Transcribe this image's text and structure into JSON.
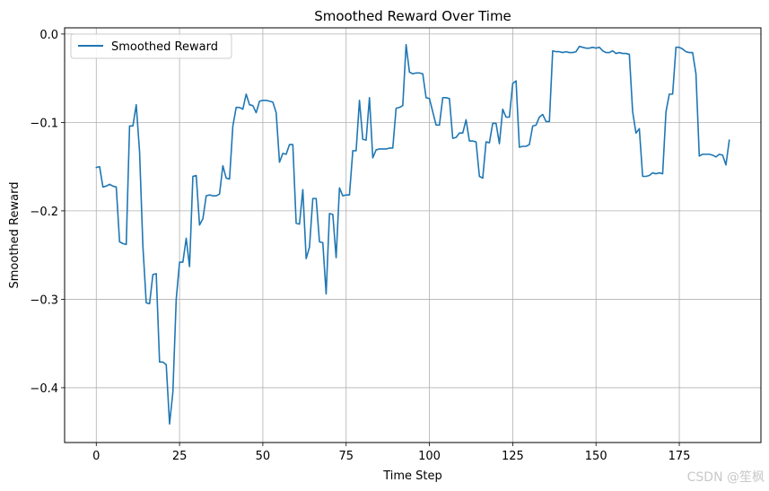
{
  "chart_data": {
    "type": "line",
    "title": "Smoothed Reward Over Time",
    "xlabel": "Time Step",
    "ylabel": "Smoothed Reward",
    "xlim": [
      -9.5,
      199.5
    ],
    "ylim": [
      -0.462,
      0.007
    ],
    "xticks": [
      0,
      25,
      50,
      75,
      100,
      125,
      150,
      175
    ],
    "yticks": [
      0.0,
      -0.1,
      -0.2,
      -0.3,
      -0.4
    ],
    "ytick_labels": [
      "0.0",
      "−0.1",
      "−0.2",
      "−0.3",
      "−0.4"
    ],
    "grid": true,
    "legend_position": "top-left",
    "series": [
      {
        "name": "Smoothed Reward",
        "color": "#1f77b4",
        "x": [
          0,
          1,
          2,
          3,
          4,
          5,
          6,
          7,
          8,
          9,
          10,
          11,
          12,
          13,
          14,
          15,
          16,
          17,
          18,
          19,
          20,
          21,
          22,
          23,
          24,
          25,
          26,
          27,
          28,
          29,
          30,
          31,
          32,
          33,
          34,
          35,
          36,
          37,
          38,
          39,
          40,
          41,
          42,
          43,
          44,
          45,
          46,
          47,
          48,
          49,
          50,
          51,
          52,
          53,
          54,
          55,
          56,
          57,
          58,
          59,
          60,
          61,
          62,
          63,
          64,
          65,
          66,
          67,
          68,
          69,
          70,
          71,
          72,
          73,
          74,
          75,
          76,
          77,
          78,
          79,
          80,
          81,
          82,
          83,
          84,
          85,
          86,
          87,
          88,
          89,
          90,
          91,
          92,
          93,
          94,
          95,
          96,
          97,
          98,
          99,
          100,
          101,
          102,
          103,
          104,
          105,
          106,
          107,
          108,
          109,
          110,
          111,
          112,
          113,
          114,
          115,
          116,
          117,
          118,
          119,
          120,
          121,
          122,
          123,
          124,
          125,
          126,
          127,
          128,
          129,
          130,
          131,
          132,
          133,
          134,
          135,
          136,
          137,
          138,
          139,
          140,
          141,
          142,
          143,
          144,
          145,
          146,
          147,
          148,
          149,
          150,
          151,
          152,
          153,
          154,
          155,
          156,
          157,
          158,
          159,
          160,
          161,
          162,
          163,
          164,
          165,
          166,
          167,
          168,
          169,
          170,
          171,
          172,
          173,
          174,
          175,
          176,
          177,
          178,
          179,
          180,
          181,
          182,
          183,
          184,
          185,
          186,
          187,
          188,
          189,
          190
        ],
        "y": [
          -0.151,
          -0.15,
          -0.173,
          -0.172,
          -0.17,
          -0.172,
          -0.173,
          -0.235,
          -0.237,
          -0.238,
          -0.104,
          -0.104,
          -0.08,
          -0.133,
          -0.24,
          -0.304,
          -0.305,
          -0.272,
          -0.271,
          -0.371,
          -0.371,
          -0.374,
          -0.441,
          -0.405,
          -0.3,
          -0.258,
          -0.258,
          -0.231,
          -0.263,
          -0.161,
          -0.16,
          -0.216,
          -0.209,
          -0.183,
          -0.182,
          -0.183,
          -0.183,
          -0.181,
          -0.149,
          -0.163,
          -0.164,
          -0.104,
          -0.083,
          -0.083,
          -0.085,
          -0.068,
          -0.08,
          -0.081,
          -0.089,
          -0.076,
          -0.075,
          -0.075,
          -0.076,
          -0.077,
          -0.089,
          -0.145,
          -0.135,
          -0.136,
          -0.125,
          -0.125,
          -0.214,
          -0.215,
          -0.176,
          -0.254,
          -0.241,
          -0.186,
          -0.186,
          -0.235,
          -0.236,
          -0.294,
          -0.203,
          -0.204,
          -0.253,
          -0.174,
          -0.183,
          -0.182,
          -0.182,
          -0.132,
          -0.132,
          -0.075,
          -0.119,
          -0.12,
          -0.072,
          -0.14,
          -0.131,
          -0.13,
          -0.13,
          -0.13,
          -0.129,
          -0.129,
          -0.084,
          -0.083,
          -0.081,
          -0.012,
          -0.043,
          -0.045,
          -0.044,
          -0.044,
          -0.045,
          -0.072,
          -0.073,
          -0.088,
          -0.103,
          -0.103,
          -0.072,
          -0.072,
          -0.073,
          -0.118,
          -0.117,
          -0.112,
          -0.112,
          -0.097,
          -0.121,
          -0.121,
          -0.122,
          -0.161,
          -0.163,
          -0.122,
          -0.123,
          -0.101,
          -0.101,
          -0.124,
          -0.085,
          -0.094,
          -0.094,
          -0.056,
          -0.053,
          -0.128,
          -0.127,
          -0.127,
          -0.125,
          -0.104,
          -0.103,
          -0.094,
          -0.091,
          -0.099,
          -0.099,
          -0.019,
          -0.02,
          -0.02,
          -0.021,
          -0.02,
          -0.021,
          -0.021,
          -0.02,
          -0.014,
          -0.015,
          -0.016,
          -0.016,
          -0.015,
          -0.016,
          -0.015,
          -0.019,
          -0.021,
          -0.021,
          -0.019,
          -0.022,
          -0.021,
          -0.022,
          -0.022,
          -0.023,
          -0.088,
          -0.112,
          -0.107,
          -0.161,
          -0.161,
          -0.16,
          -0.157,
          -0.158,
          -0.157,
          -0.158,
          -0.088,
          -0.068,
          -0.068,
          -0.015,
          -0.015,
          -0.017,
          -0.02,
          -0.021,
          -0.021,
          -0.045,
          -0.138,
          -0.136,
          -0.136,
          -0.136,
          -0.137,
          -0.139,
          -0.136,
          -0.137,
          -0.148,
          -0.12
        ]
      }
    ]
  },
  "watermark": "CSDN @笙枫"
}
